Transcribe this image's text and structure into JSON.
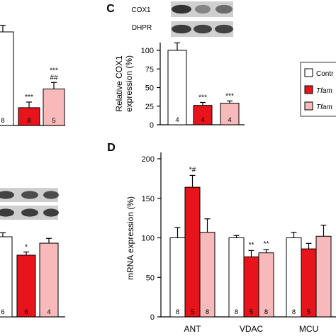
{
  "colors": {
    "control": "#ffffff",
    "tfam": "#e8141b",
    "tfam_treated": "#f7b9b9",
    "axis": "#000000"
  },
  "legend": {
    "items": [
      {
        "label": "Contr",
        "color_key": "control",
        "italic": false
      },
      {
        "label": "Tfam",
        "color_key": "tfam",
        "italic": true
      },
      {
        "label": "Tfam",
        "color_key": "tfam_treated",
        "italic": true
      }
    ]
  },
  "chart_data": [
    {
      "panel": "B-top (partial)",
      "type": "bar",
      "categories": [
        "",
        "",
        ""
      ],
      "values": [
        100,
        19,
        39
      ],
      "errors": [
        7,
        6,
        7
      ],
      "n": [
        "8",
        "8",
        "5"
      ],
      "significance": [
        "",
        "***",
        "***\n##"
      ],
      "ylim": [
        0,
        120
      ]
    },
    {
      "panel": "C",
      "label": "C",
      "type": "bar",
      "blot_labels": [
        "COX1",
        "DHPR"
      ],
      "categories": [
        "",
        "",
        ""
      ],
      "values": [
        100,
        26,
        29
      ],
      "errors": [
        10,
        4,
        3
      ],
      "n": [
        "4",
        "4",
        "4"
      ],
      "significance": [
        "",
        "***",
        "***"
      ],
      "ylabel": "Relative COX1\nexpression (%)",
      "yticks": [
        0,
        25,
        50,
        75,
        100
      ],
      "ylim": [
        0,
        110
      ]
    },
    {
      "panel": "B-bottom (partial)",
      "type": "bar",
      "categories": [
        "",
        "",
        ""
      ],
      "values": [
        100,
        77,
        92
      ],
      "errors": [
        5,
        4,
        6
      ],
      "n": [
        "6",
        "6",
        "4"
      ],
      "significance": [
        "",
        "*",
        ""
      ],
      "ylim": [
        0,
        110
      ]
    },
    {
      "panel": "D",
      "label": "D",
      "type": "bar",
      "ylabel": "mRNA expression (%)",
      "yticks": [
        0,
        50,
        100,
        150,
        200
      ],
      "ylim": [
        0,
        200
      ],
      "categories": [
        "ANT",
        "VDAC",
        "MCU"
      ],
      "series": [
        {
          "color_key": "control",
          "values": [
            100,
            100,
            100
          ],
          "errors": [
            13,
            3,
            7
          ],
          "n": [
            "8",
            "8",
            "8"
          ],
          "significance": [
            "",
            "",
            ""
          ]
        },
        {
          "color_key": "tfam",
          "values": [
            164,
            76,
            86
          ],
          "errors": [
            15,
            8,
            7
          ],
          "n": [
            "5",
            "5",
            "5"
          ],
          "significance": [
            "*#",
            "**",
            ""
          ]
        },
        {
          "color_key": "tfam_treated",
          "values": [
            107,
            81,
            102
          ],
          "errors": [
            17,
            4,
            14
          ],
          "n": [
            "8",
            "8",
            ""
          ],
          "significance": [
            "",
            "**",
            ""
          ]
        }
      ]
    }
  ]
}
